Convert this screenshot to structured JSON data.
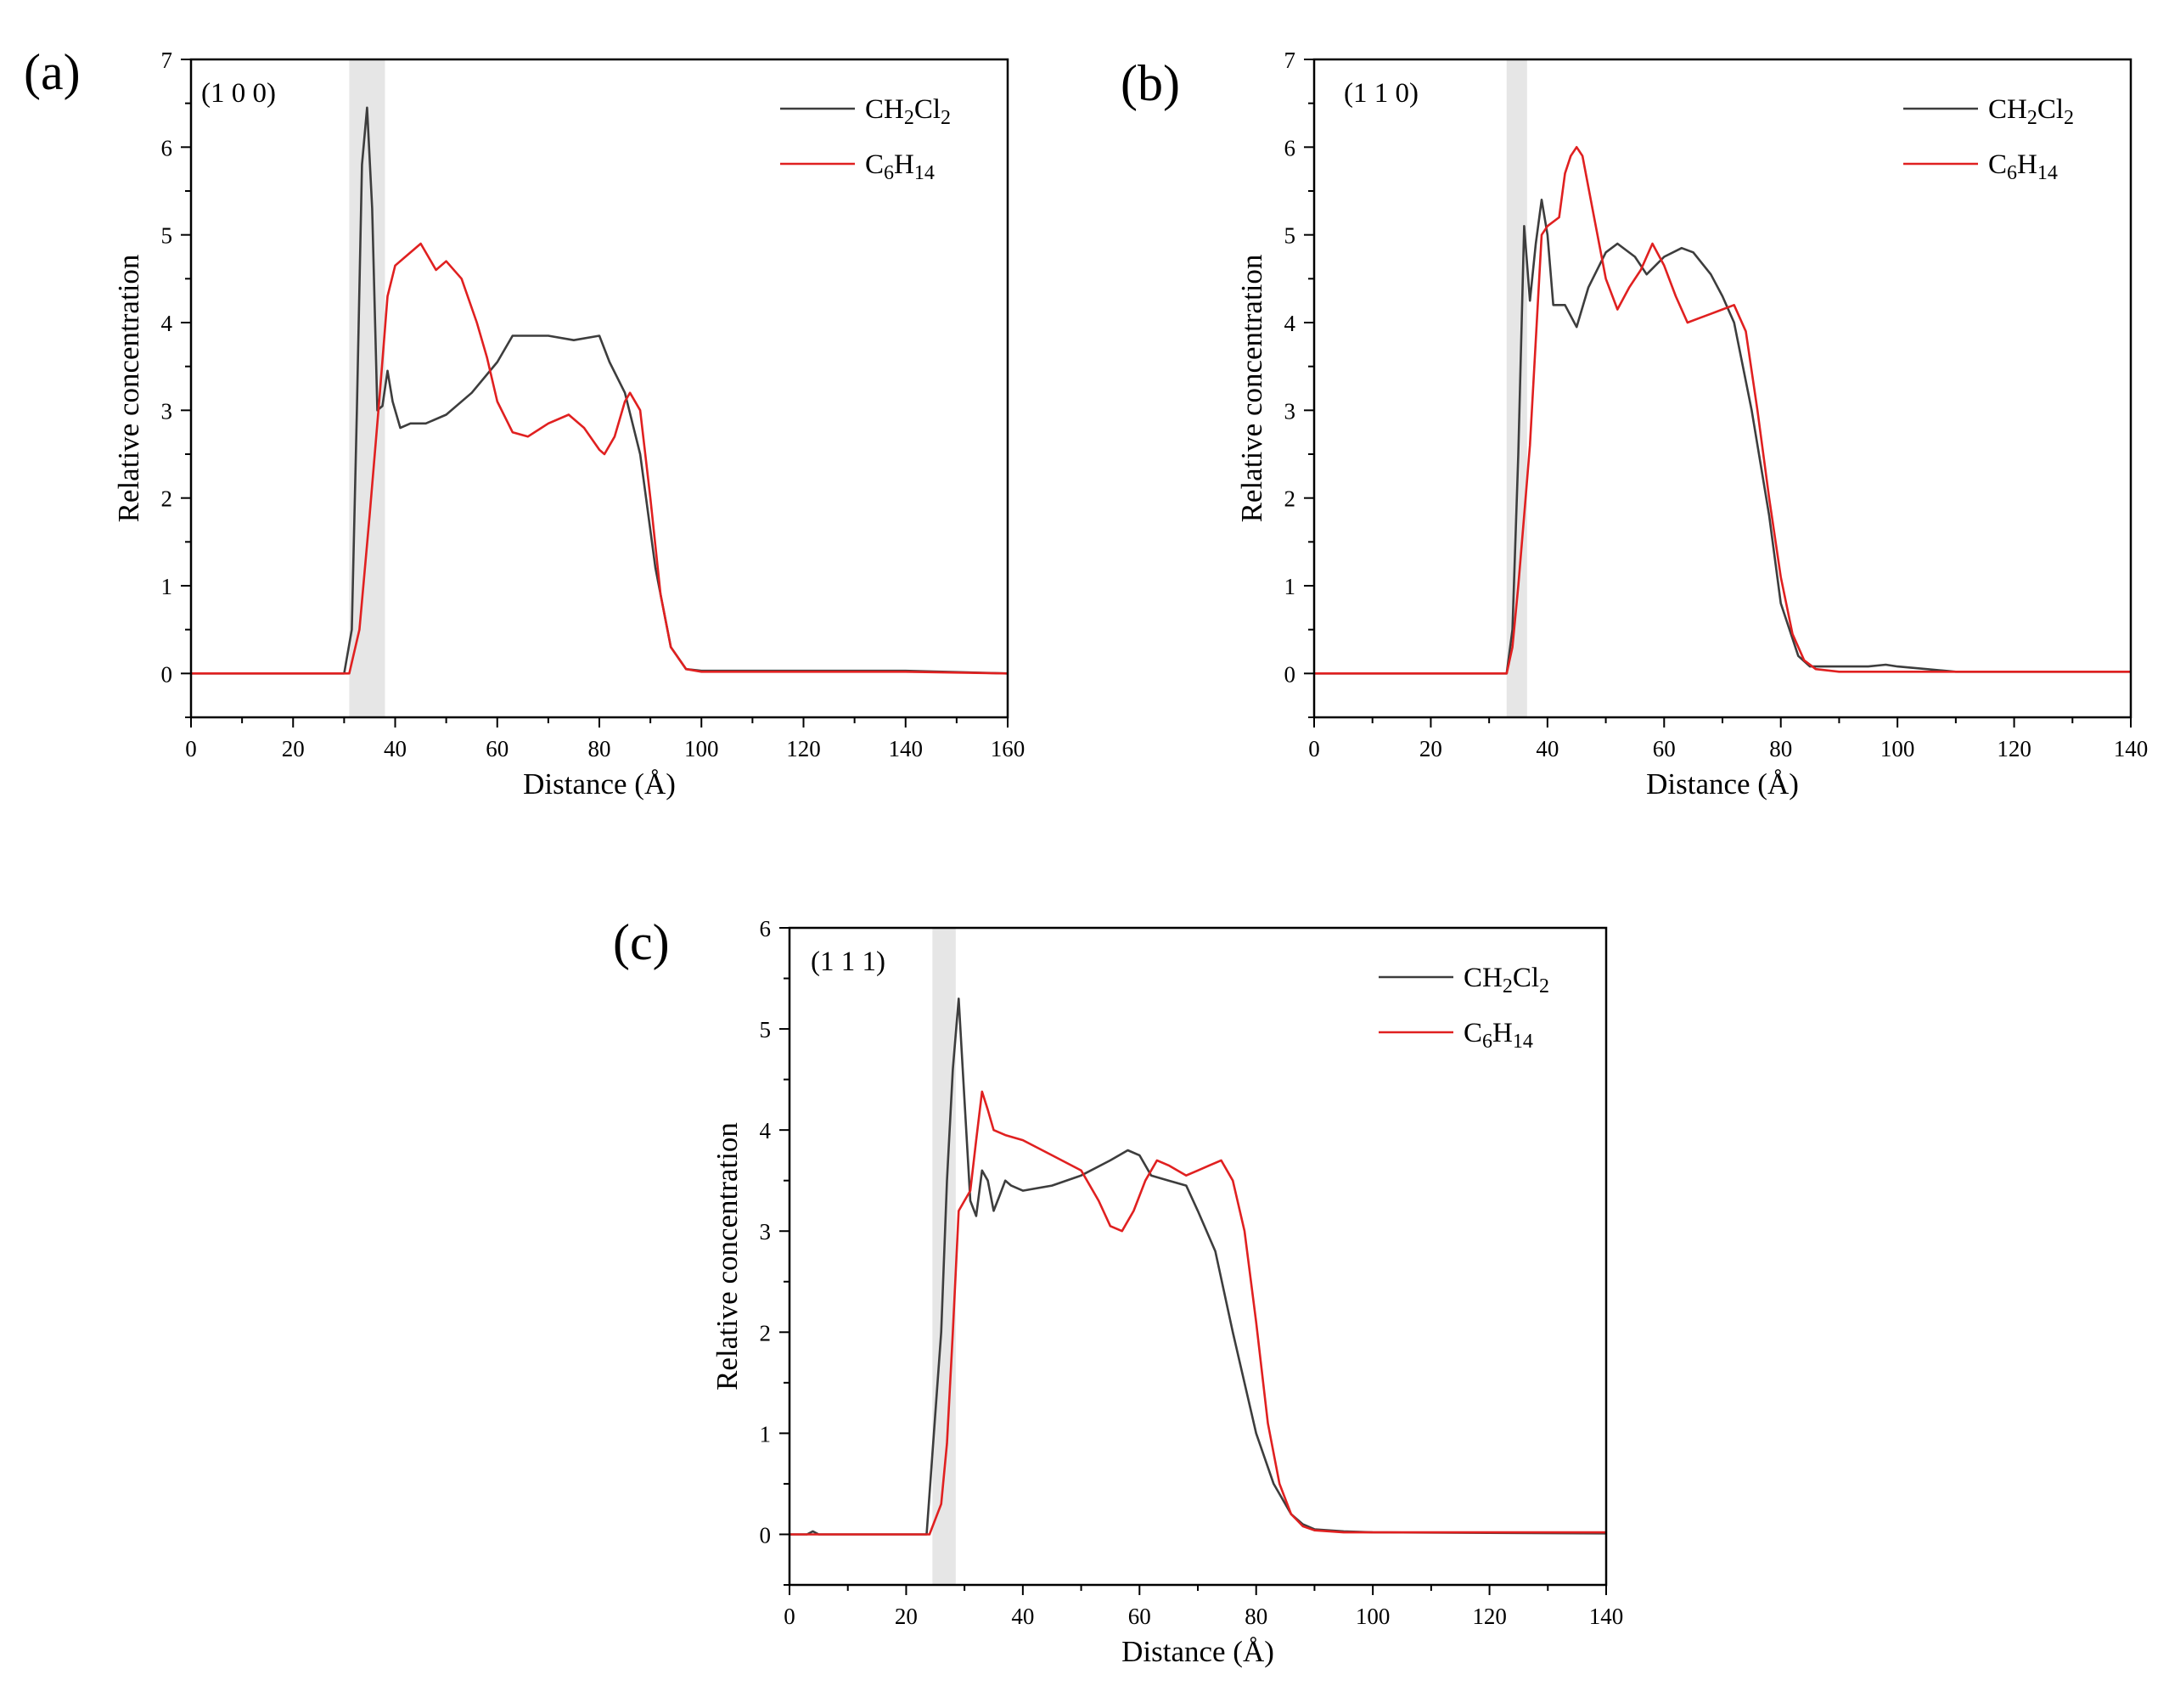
{
  "figure": {
    "description_tag": "three-panel relative concentration profiles"
  },
  "chart_data": [
    {
      "type": "line",
      "panel": "(a)",
      "facet": "(1 0 0)",
      "xlabel": "Distance (Å)",
      "ylabel": "Relative concentration",
      "xlim": [
        0,
        160
      ],
      "ylim": [
        -0.5,
        7
      ],
      "xticks": [
        0,
        20,
        40,
        60,
        80,
        100,
        120,
        140,
        160
      ],
      "yticks": [
        0,
        1,
        2,
        3,
        4,
        5,
        6,
        7
      ],
      "shade": [
        31,
        38
      ],
      "legend": "top-right",
      "series": [
        {
          "name": "CH2Cl2",
          "label_main": "CH",
          "sub1": "2",
          "mid": "Cl",
          "sub2": "2",
          "color": "#3d3d3d",
          "x": [
            0,
            30,
            31.5,
            32.5,
            33.5,
            34.5,
            35.5,
            36.5,
            37.5,
            38.5,
            39.5,
            41,
            43,
            46,
            50,
            55,
            60,
            63,
            66,
            70,
            75,
            80,
            82,
            85,
            88,
            91,
            94,
            97,
            100,
            105,
            120,
            140,
            160
          ],
          "y": [
            0,
            0,
            0.5,
            3.0,
            5.8,
            6.45,
            5.3,
            3.0,
            3.05,
            3.45,
            3.1,
            2.8,
            2.85,
            2.85,
            2.95,
            3.2,
            3.55,
            3.85,
            3.85,
            3.85,
            3.8,
            3.85,
            3.55,
            3.2,
            2.5,
            1.2,
            0.3,
            0.05,
            0.03,
            0.03,
            0.03,
            0.03,
            0
          ]
        },
        {
          "name": "C6H14",
          "label_main": "C",
          "sub1": "6",
          "mid": "H",
          "sub2": "14",
          "color": "#e02020",
          "x": [
            0,
            31,
            33,
            35,
            37,
            38.5,
            40,
            42,
            45,
            48,
            50,
            53,
            56,
            58,
            60,
            63,
            66,
            70,
            74,
            77,
            80,
            81,
            83,
            85,
            86,
            88,
            90,
            92,
            94,
            97,
            100,
            120,
            140,
            160
          ],
          "y": [
            0,
            0,
            0.5,
            1.8,
            3.2,
            4.3,
            4.65,
            4.75,
            4.9,
            4.6,
            4.7,
            4.5,
            4.0,
            3.6,
            3.1,
            2.75,
            2.7,
            2.85,
            2.95,
            2.8,
            2.55,
            2.5,
            2.7,
            3.1,
            3.2,
            3.0,
            2.0,
            0.9,
            0.3,
            0.05,
            0.02,
            0.02,
            0.02,
            0
          ]
        }
      ]
    },
    {
      "type": "line",
      "panel": "(b)",
      "facet": "(1 1 0)",
      "xlabel": "Distance (Å)",
      "ylabel": "Relative concentration",
      "xlim": [
        0,
        140
      ],
      "ylim": [
        -0.5,
        7
      ],
      "xticks": [
        0,
        20,
        40,
        60,
        80,
        100,
        120,
        140
      ],
      "yticks": [
        0,
        1,
        2,
        3,
        4,
        5,
        6,
        7
      ],
      "shade": [
        33,
        36.5
      ],
      "legend": "top-right",
      "series": [
        {
          "name": "CH2Cl2",
          "label_main": "CH",
          "sub1": "2",
          "mid": "Cl",
          "sub2": "2",
          "color": "#3d3d3d",
          "x": [
            0,
            33,
            34,
            35,
            36,
            37,
            38,
            39,
            40,
            41,
            43,
            45,
            47,
            50,
            52,
            55,
            57,
            60,
            63,
            65,
            68,
            70,
            72,
            75,
            78,
            80,
            83,
            85,
            90,
            95,
            98,
            100,
            105,
            110,
            120,
            140
          ],
          "y": [
            0,
            0,
            0.5,
            2.5,
            5.1,
            4.25,
            4.9,
            5.4,
            5.0,
            4.2,
            4.2,
            3.95,
            4.4,
            4.8,
            4.9,
            4.75,
            4.55,
            4.75,
            4.85,
            4.8,
            4.55,
            4.3,
            4.0,
            3.0,
            1.8,
            0.8,
            0.2,
            0.08,
            0.08,
            0.08,
            0.1,
            0.08,
            0.05,
            0.02,
            0.02,
            0.02
          ]
        },
        {
          "name": "C6H14",
          "label_main": "C",
          "sub1": "6",
          "mid": "H",
          "sub2": "14",
          "color": "#e02020",
          "x": [
            0,
            33,
            34,
            35,
            36,
            37,
            38,
            39,
            40,
            42,
            43,
            44,
            45,
            46,
            48,
            50,
            52,
            54,
            56,
            58,
            60,
            62,
            64,
            66,
            68,
            70,
            72,
            74,
            76,
            78,
            80,
            82,
            84,
            86,
            90,
            100,
            140
          ],
          "y": [
            0,
            0,
            0.3,
            1.0,
            1.8,
            2.6,
            3.8,
            5.0,
            5.1,
            5.2,
            5.7,
            5.9,
            6.0,
            5.9,
            5.2,
            4.5,
            4.15,
            4.4,
            4.6,
            4.9,
            4.65,
            4.3,
            4.0,
            4.05,
            4.1,
            4.15,
            4.2,
            3.9,
            3.0,
            2.0,
            1.1,
            0.45,
            0.15,
            0.05,
            0.02,
            0.02,
            0.02
          ]
        }
      ]
    },
    {
      "type": "line",
      "panel": "(c)",
      "facet": "(1 1 1)",
      "xlabel": "Distance (Å)",
      "ylabel": "Relative concentration",
      "xlim": [
        0,
        140
      ],
      "ylim": [
        -0.5,
        6
      ],
      "xticks": [
        0,
        20,
        40,
        60,
        80,
        100,
        120,
        140
      ],
      "yticks": [
        0,
        1,
        2,
        3,
        4,
        5,
        6
      ],
      "shade": [
        24.5,
        28.5
      ],
      "legend": "top-right",
      "series": [
        {
          "name": "CH2Cl2",
          "label_main": "CH",
          "sub1": "2",
          "mid": "Cl",
          "sub2": "2",
          "color": "#3d3d3d",
          "x": [
            0,
            3,
            4,
            5,
            23.5,
            25,
            26,
            27,
            28,
            29,
            30,
            31,
            32,
            33,
            34,
            35,
            36,
            37,
            38,
            40,
            45,
            50,
            55,
            58,
            60,
            62,
            65,
            68,
            70,
            73,
            76,
            80,
            83,
            86,
            88,
            90,
            95,
            100,
            140
          ],
          "y": [
            0,
            0,
            0.03,
            0,
            0,
            1.2,
            2.0,
            3.5,
            4.6,
            5.3,
            4.3,
            3.3,
            3.15,
            3.6,
            3.5,
            3.2,
            3.35,
            3.5,
            3.45,
            3.4,
            3.45,
            3.55,
            3.7,
            3.8,
            3.75,
            3.55,
            3.5,
            3.45,
            3.2,
            2.8,
            2.0,
            1.0,
            0.5,
            0.2,
            0.1,
            0.05,
            0.03,
            0.02,
            0.01
          ]
        },
        {
          "name": "C6H14",
          "label_main": "C",
          "sub1": "6",
          "mid": "H",
          "sub2": "14",
          "color": "#e02020",
          "x": [
            0,
            24,
            26,
            27,
            28,
            29,
            30,
            31,
            32,
            33,
            34,
            35,
            37,
            40,
            45,
            50,
            53,
            55,
            57,
            59,
            61,
            63,
            65,
            68,
            70,
            72,
            74,
            76,
            78,
            80,
            82,
            84,
            86,
            88,
            90,
            95,
            100,
            140
          ],
          "y": [
            0,
            0,
            0.3,
            0.9,
            2.0,
            3.2,
            3.3,
            3.4,
            3.9,
            4.38,
            4.2,
            4.0,
            3.95,
            3.9,
            3.75,
            3.6,
            3.3,
            3.05,
            3.0,
            3.2,
            3.5,
            3.7,
            3.65,
            3.55,
            3.6,
            3.65,
            3.7,
            3.5,
            3.0,
            2.1,
            1.1,
            0.5,
            0.2,
            0.08,
            0.04,
            0.02,
            0.02,
            0.02
          ]
        }
      ]
    }
  ]
}
